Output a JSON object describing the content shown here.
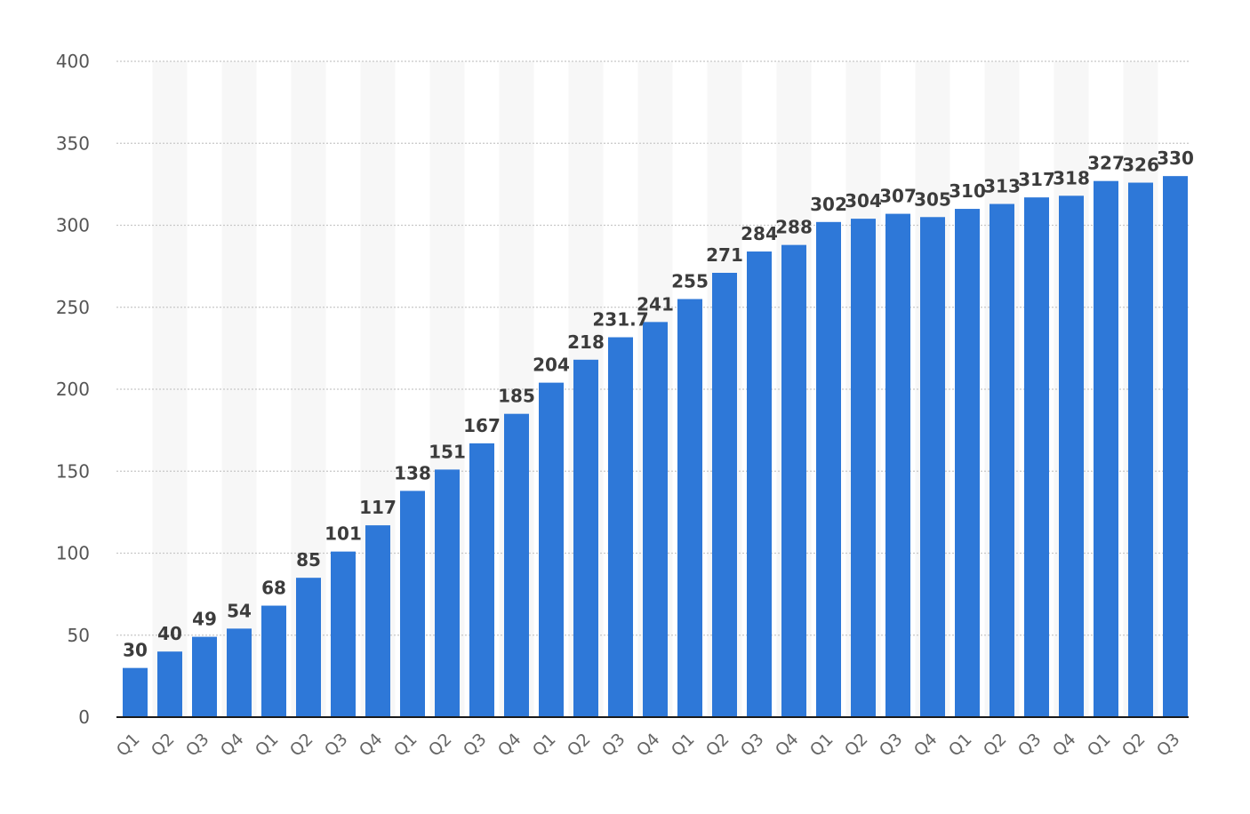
{
  "chart_data": {
    "type": "bar",
    "title": "",
    "xlabel": "",
    "ylabel": "",
    "ylim": [
      0,
      400
    ],
    "yticks": [
      "0",
      "50",
      "100",
      "150",
      "200",
      "250",
      "300",
      "350",
      "400"
    ],
    "grid": true,
    "legend": "none",
    "bar_color": "#2e78d8",
    "categories": [
      "Q1",
      "Q2",
      "Q3",
      "Q4",
      "Q1",
      "Q2",
      "Q3",
      "Q4",
      "Q1",
      "Q2",
      "Q3",
      "Q4",
      "Q1",
      "Q2",
      "Q3",
      "Q4",
      "Q1",
      "Q2",
      "Q3",
      "Q4",
      "Q1",
      "Q2",
      "Q3",
      "Q4",
      "Q1",
      "Q2",
      "Q3",
      "Q4",
      "Q1",
      "Q2",
      "Q3"
    ],
    "values": [
      30,
      40,
      49,
      54,
      68,
      85,
      101,
      117,
      138,
      151,
      167,
      185,
      204,
      218,
      231.7,
      241,
      255,
      271,
      284,
      288,
      302,
      304,
      307,
      305,
      310,
      313,
      317,
      318,
      327,
      326,
      330
    ],
    "labels": [
      "30",
      "40",
      "49",
      "54",
      "68",
      "85",
      "101",
      "117",
      "138",
      "151",
      "167",
      "185",
      "204",
      "218",
      "231.7",
      "241",
      "255",
      "271",
      "284",
      "288",
      "302",
      "304",
      "307",
      "305",
      "310",
      "313",
      "317",
      "318",
      "327",
      "326",
      "330"
    ]
  }
}
